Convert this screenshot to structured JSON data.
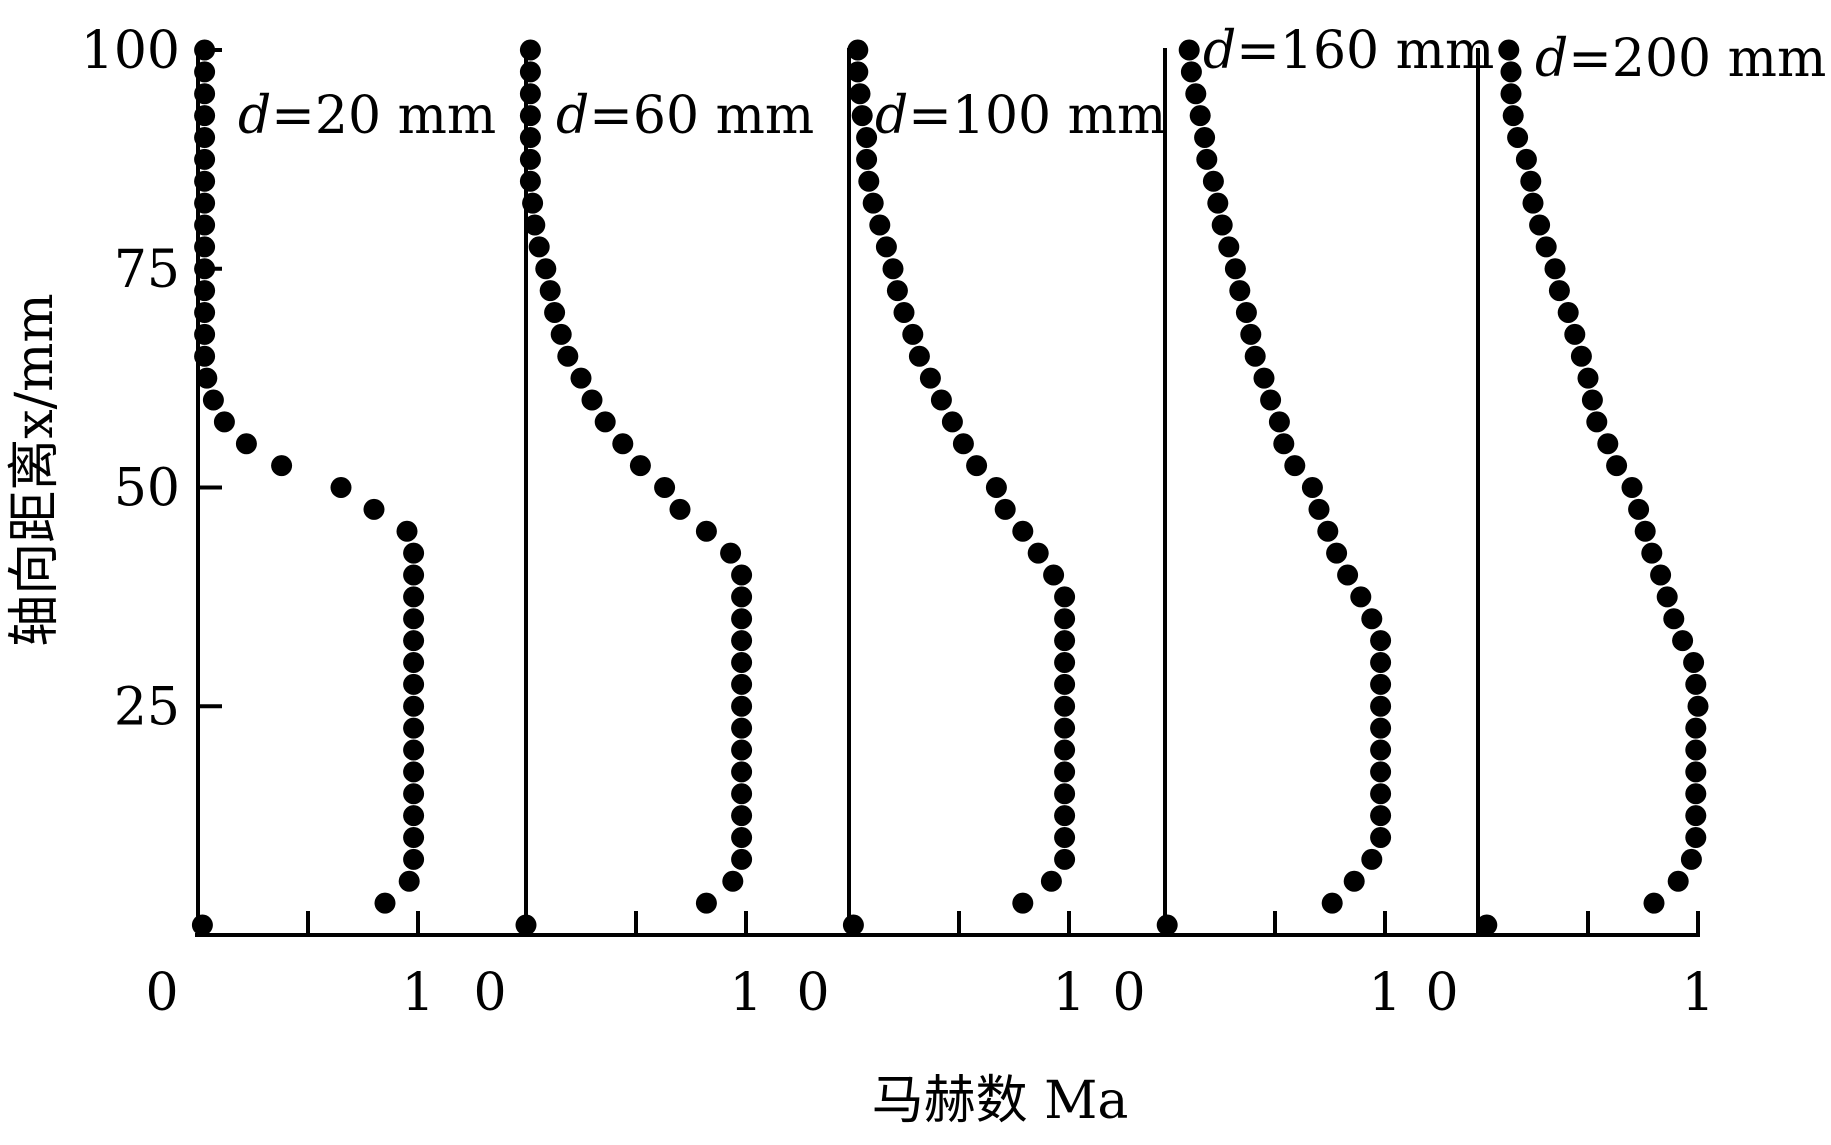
{
  "chart_data": {
    "type": "scatter",
    "xlabel": "马赫数 Ma",
    "ylabel": "轴向距离x/mm",
    "ylim": [
      0,
      100
    ],
    "y_ticks": [
      "100",
      "75",
      "50",
      "25"
    ],
    "x_tick_labels": [
      "0",
      "1"
    ],
    "xlim": [
      0,
      1
    ],
    "grid": false,
    "marker_color": "#000000",
    "series": [
      {
        "name": "d=20 mm",
        "label_italic": "d",
        "label_rest": "=20 mm",
        "points": [
          [
            0.03,
            100.0
          ],
          [
            0.03,
            97.5
          ],
          [
            0.03,
            95.0
          ],
          [
            0.03,
            92.5
          ],
          [
            0.03,
            90.0
          ],
          [
            0.03,
            87.5
          ],
          [
            0.03,
            85.0
          ],
          [
            0.03,
            82.5
          ],
          [
            0.03,
            80.0
          ],
          [
            0.03,
            77.5
          ],
          [
            0.03,
            75.0
          ],
          [
            0.03,
            72.5
          ],
          [
            0.03,
            70.0
          ],
          [
            0.03,
            67.5
          ],
          [
            0.03,
            65.0
          ],
          [
            0.04,
            62.5
          ],
          [
            0.07,
            60.0
          ],
          [
            0.12,
            57.5
          ],
          [
            0.22,
            55.0
          ],
          [
            0.38,
            52.5
          ],
          [
            0.65,
            50.0
          ],
          [
            0.8,
            47.5
          ],
          [
            0.95,
            45.0
          ],
          [
            0.98,
            42.5
          ],
          [
            0.98,
            40.0
          ],
          [
            0.98,
            37.5
          ],
          [
            0.98,
            35.0
          ],
          [
            0.98,
            32.5
          ],
          [
            0.98,
            30.0
          ],
          [
            0.98,
            27.5
          ],
          [
            0.98,
            25.0
          ],
          [
            0.98,
            22.5
          ],
          [
            0.98,
            20.0
          ],
          [
            0.98,
            17.5
          ],
          [
            0.98,
            15.0
          ],
          [
            0.98,
            12.5
          ],
          [
            0.98,
            10.0
          ],
          [
            0.98,
            7.5
          ],
          [
            0.96,
            5.0
          ],
          [
            0.85,
            2.5
          ],
          [
            0.02,
            0.0
          ]
        ]
      },
      {
        "name": "d=60 mm",
        "label_italic": "d",
        "label_rest": "=60 mm",
        "points": [
          [
            0.02,
            100.0
          ],
          [
            0.02,
            97.5
          ],
          [
            0.02,
            95.0
          ],
          [
            0.02,
            92.5
          ],
          [
            0.02,
            90.0
          ],
          [
            0.02,
            87.5
          ],
          [
            0.02,
            85.0
          ],
          [
            0.03,
            82.5
          ],
          [
            0.04,
            80.0
          ],
          [
            0.06,
            77.5
          ],
          [
            0.09,
            75.0
          ],
          [
            0.11,
            72.5
          ],
          [
            0.13,
            70.0
          ],
          [
            0.16,
            67.5
          ],
          [
            0.19,
            65.0
          ],
          [
            0.25,
            62.5
          ],
          [
            0.3,
            60.0
          ],
          [
            0.36,
            57.5
          ],
          [
            0.44,
            55.0
          ],
          [
            0.52,
            52.5
          ],
          [
            0.63,
            50.0
          ],
          [
            0.7,
            47.5
          ],
          [
            0.82,
            45.0
          ],
          [
            0.93,
            42.5
          ],
          [
            0.98,
            40.0
          ],
          [
            0.98,
            37.5
          ],
          [
            0.98,
            35.0
          ],
          [
            0.98,
            32.5
          ],
          [
            0.98,
            30.0
          ],
          [
            0.98,
            27.5
          ],
          [
            0.98,
            25.0
          ],
          [
            0.98,
            22.5
          ],
          [
            0.98,
            20.0
          ],
          [
            0.98,
            17.5
          ],
          [
            0.98,
            15.0
          ],
          [
            0.98,
            12.5
          ],
          [
            0.98,
            10.0
          ],
          [
            0.98,
            7.5
          ],
          [
            0.94,
            5.0
          ],
          [
            0.82,
            2.5
          ],
          [
            0.0,
            0.0
          ]
        ]
      },
      {
        "name": "d=100 mm",
        "label_italic": "d",
        "label_rest": "=100 mm",
        "points": [
          [
            0.04,
            100.0
          ],
          [
            0.04,
            97.5
          ],
          [
            0.05,
            95.0
          ],
          [
            0.06,
            92.5
          ],
          [
            0.08,
            90.0
          ],
          [
            0.08,
            87.5
          ],
          [
            0.09,
            85.0
          ],
          [
            0.11,
            82.5
          ],
          [
            0.14,
            80.0
          ],
          [
            0.17,
            77.5
          ],
          [
            0.2,
            75.0
          ],
          [
            0.22,
            72.5
          ],
          [
            0.25,
            70.0
          ],
          [
            0.29,
            67.5
          ],
          [
            0.32,
            65.0
          ],
          [
            0.37,
            62.5
          ],
          [
            0.42,
            60.0
          ],
          [
            0.47,
            57.5
          ],
          [
            0.52,
            55.0
          ],
          [
            0.58,
            52.5
          ],
          [
            0.67,
            50.0
          ],
          [
            0.71,
            47.5
          ],
          [
            0.79,
            45.0
          ],
          [
            0.86,
            42.5
          ],
          [
            0.93,
            40.0
          ],
          [
            0.98,
            37.5
          ],
          [
            0.98,
            35.0
          ],
          [
            0.98,
            32.5
          ],
          [
            0.98,
            30.0
          ],
          [
            0.98,
            27.5
          ],
          [
            0.98,
            25.0
          ],
          [
            0.98,
            22.5
          ],
          [
            0.98,
            20.0
          ],
          [
            0.98,
            17.5
          ],
          [
            0.98,
            15.0
          ],
          [
            0.98,
            12.5
          ],
          [
            0.98,
            10.0
          ],
          [
            0.98,
            7.5
          ],
          [
            0.92,
            5.0
          ],
          [
            0.79,
            2.5
          ],
          [
            0.02,
            0.0
          ]
        ]
      },
      {
        "name": "d=160 mm",
        "label_italic": "d",
        "label_rest": "=160 mm",
        "points": [
          [
            0.11,
            100.0
          ],
          [
            0.12,
            97.5
          ],
          [
            0.14,
            95.0
          ],
          [
            0.16,
            92.5
          ],
          [
            0.18,
            90.0
          ],
          [
            0.19,
            87.5
          ],
          [
            0.22,
            85.0
          ],
          [
            0.24,
            82.5
          ],
          [
            0.26,
            80.0
          ],
          [
            0.29,
            77.5
          ],
          [
            0.32,
            75.0
          ],
          [
            0.34,
            72.5
          ],
          [
            0.37,
            70.0
          ],
          [
            0.39,
            67.5
          ],
          [
            0.41,
            65.0
          ],
          [
            0.45,
            62.5
          ],
          [
            0.48,
            60.0
          ],
          [
            0.52,
            57.5
          ],
          [
            0.54,
            55.0
          ],
          [
            0.59,
            52.5
          ],
          [
            0.67,
            50.0
          ],
          [
            0.7,
            47.5
          ],
          [
            0.74,
            45.0
          ],
          [
            0.78,
            42.5
          ],
          [
            0.83,
            40.0
          ],
          [
            0.89,
            37.5
          ],
          [
            0.94,
            35.0
          ],
          [
            0.98,
            32.5
          ],
          [
            0.98,
            30.0
          ],
          [
            0.98,
            27.5
          ],
          [
            0.98,
            25.0
          ],
          [
            0.98,
            22.5
          ],
          [
            0.98,
            20.0
          ],
          [
            0.98,
            17.5
          ],
          [
            0.98,
            15.0
          ],
          [
            0.98,
            12.5
          ],
          [
            0.98,
            10.0
          ],
          [
            0.94,
            7.5
          ],
          [
            0.86,
            5.0
          ],
          [
            0.76,
            2.5
          ],
          [
            0.01,
            0.0
          ]
        ]
      },
      {
        "name": "d=200 mm",
        "label_italic": "d",
        "label_rest": "=200 mm",
        "points": [
          [
            0.14,
            100.0
          ],
          [
            0.15,
            97.5
          ],
          [
            0.15,
            95.0
          ],
          [
            0.16,
            92.5
          ],
          [
            0.18,
            90.0
          ],
          [
            0.22,
            87.5
          ],
          [
            0.24,
            85.0
          ],
          [
            0.25,
            82.5
          ],
          [
            0.28,
            80.0
          ],
          [
            0.31,
            77.5
          ],
          [
            0.35,
            75.0
          ],
          [
            0.37,
            72.5
          ],
          [
            0.41,
            70.0
          ],
          [
            0.44,
            67.5
          ],
          [
            0.47,
            65.0
          ],
          [
            0.5,
            62.5
          ],
          [
            0.52,
            60.0
          ],
          [
            0.54,
            57.5
          ],
          [
            0.59,
            55.0
          ],
          [
            0.63,
            52.5
          ],
          [
            0.7,
            50.0
          ],
          [
            0.73,
            47.5
          ],
          [
            0.76,
            45.0
          ],
          [
            0.79,
            42.5
          ],
          [
            0.83,
            40.0
          ],
          [
            0.86,
            37.5
          ],
          [
            0.89,
            35.0
          ],
          [
            0.93,
            32.5
          ],
          [
            0.98,
            30.0
          ],
          [
            0.99,
            27.5
          ],
          [
            1.0,
            25.0
          ],
          [
            0.99,
            22.5
          ],
          [
            0.99,
            20.0
          ],
          [
            0.99,
            17.5
          ],
          [
            0.99,
            15.0
          ],
          [
            0.99,
            12.5
          ],
          [
            0.99,
            10.0
          ],
          [
            0.97,
            7.5
          ],
          [
            0.91,
            5.0
          ],
          [
            0.8,
            2.5
          ],
          [
            0.04,
            0.0
          ]
        ]
      }
    ]
  }
}
